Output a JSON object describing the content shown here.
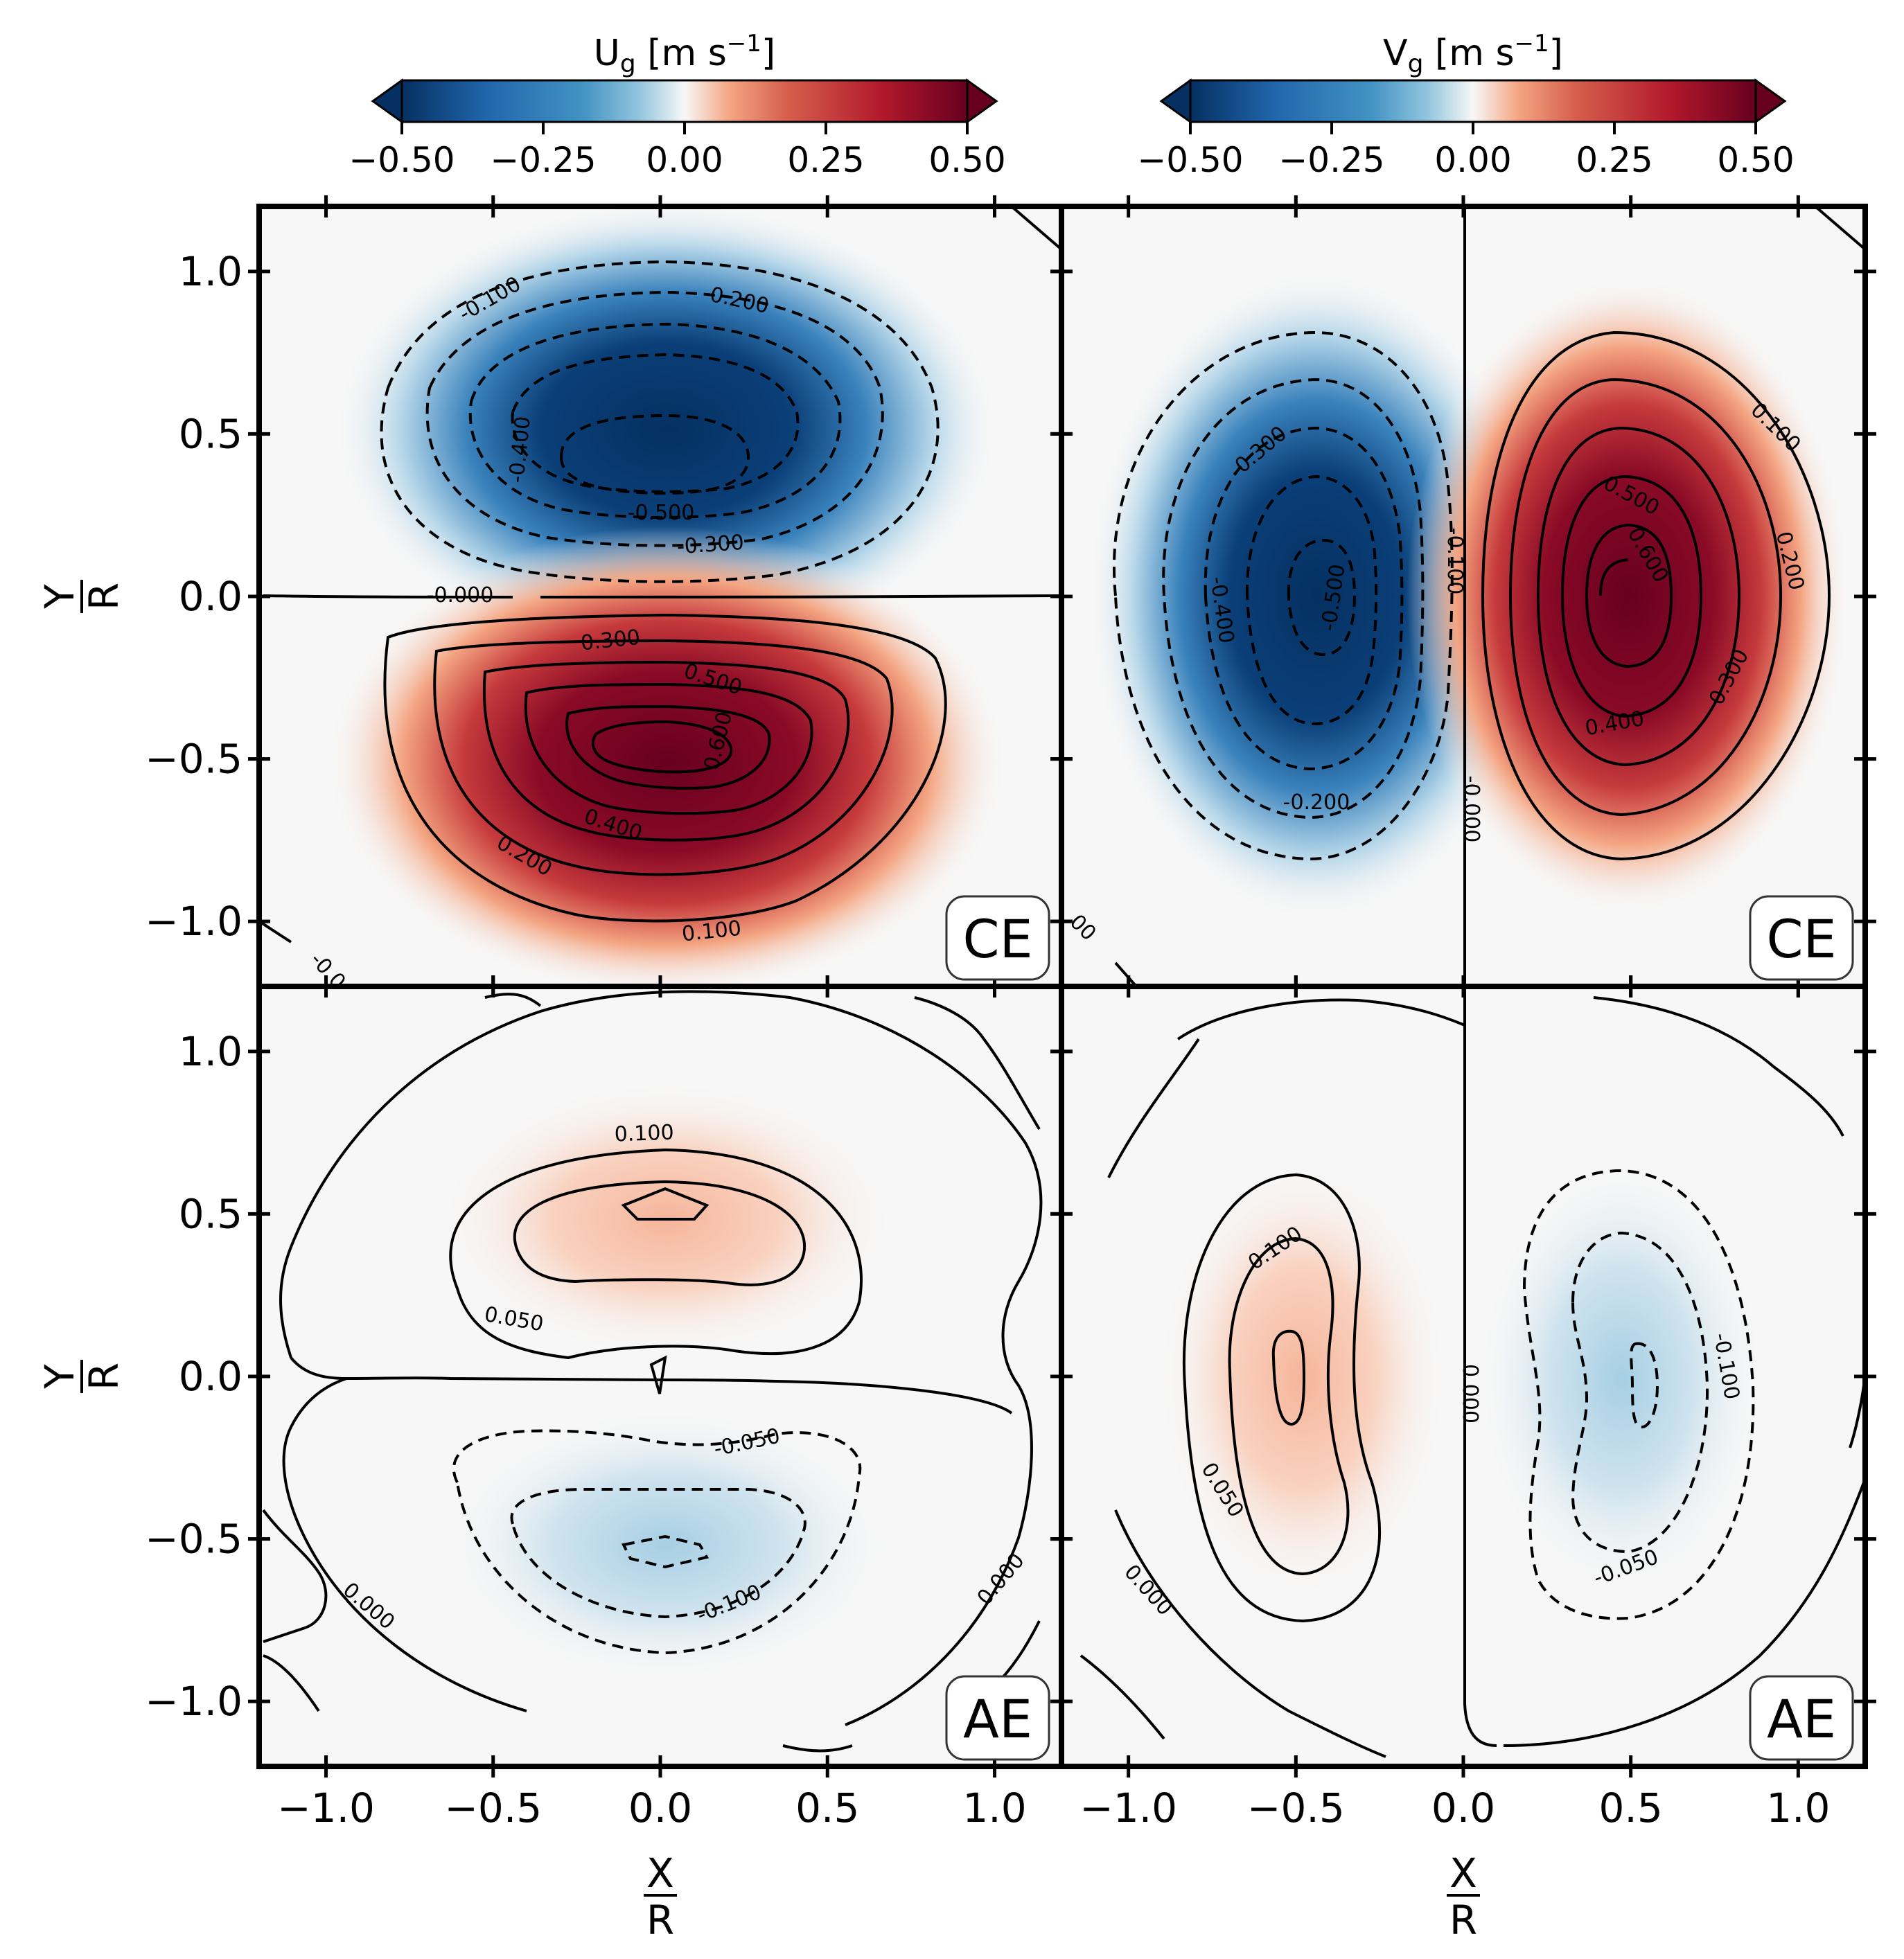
{
  "chart_data": [
    {
      "type": "heatmap",
      "panel": "top-left",
      "variable": "Ug",
      "label": "CE",
      "xlim": [
        -1.2,
        1.2
      ],
      "ylim": [
        -1.2,
        1.2
      ],
      "xticks": [
        -1.0,
        -0.5,
        0.0,
        0.5,
        1.0
      ],
      "yticks": [
        "1.0",
        "0.5",
        "0.0",
        "−0.5",
        "−1.0"
      ],
      "structure": [
        {
          "kind": "negative-lobe",
          "center": [
            0.0,
            0.42
          ],
          "peak": -0.62
        },
        {
          "kind": "positive-lobe",
          "center": [
            0.0,
            -0.42
          ],
          "peak": 0.62
        }
      ],
      "contour_labels": [
        "-0.100",
        "-0.200",
        "-0.400",
        "-0.500",
        "-0.300",
        "-0.000",
        "0.300",
        "0.500",
        "0.600",
        "0.400",
        "0.200",
        "0.100",
        "-0.0"
      ]
    },
    {
      "type": "heatmap",
      "panel": "top-right",
      "variable": "Vg",
      "label": "CE",
      "xlim": [
        -1.2,
        1.2
      ],
      "ylim": [
        -1.2,
        1.2
      ],
      "structure": [
        {
          "kind": "negative-lobe",
          "center": [
            -0.42,
            0.0
          ],
          "peak": -0.62
        },
        {
          "kind": "positive-lobe",
          "center": [
            0.42,
            0.0
          ],
          "peak": 0.62
        }
      ],
      "contour_labels": [
        "-0.300",
        "-0.400",
        "-0.500",
        "-0.100",
        "-0.200",
        "-0.000",
        "0.100",
        "0.500",
        "0.600",
        "0.200",
        "0.300",
        "0.400",
        "00"
      ]
    },
    {
      "type": "heatmap",
      "panel": "bottom-left",
      "variable": "Ug",
      "label": "AE",
      "xlim": [
        -1.2,
        1.2
      ],
      "ylim": [
        -1.2,
        1.2
      ],
      "structure": [
        {
          "kind": "positive-lobe",
          "center": [
            0.0,
            0.5
          ],
          "peak": 0.12
        },
        {
          "kind": "negative-lobe",
          "center": [
            0.0,
            -0.5
          ],
          "peak": -0.12
        }
      ],
      "contour_labels": [
        "0.100",
        "0.050",
        "-0.050",
        "-0.100",
        "0.000",
        "0.000"
      ]
    },
    {
      "type": "heatmap",
      "panel": "bottom-right",
      "variable": "Vg",
      "label": "AE",
      "xlim": [
        -1.2,
        1.2
      ],
      "ylim": [
        -1.2,
        1.2
      ],
      "structure": [
        {
          "kind": "positive-lobe",
          "center": [
            -0.5,
            0.0
          ],
          "peak": 0.12
        },
        {
          "kind": "negative-lobe",
          "center": [
            0.5,
            0.0
          ],
          "peak": -0.12
        }
      ],
      "contour_labels": [
        "0.100",
        "0.050",
        "0.000",
        "-0.100",
        "-0.050",
        "0.000"
      ]
    }
  ],
  "colorbars": [
    {
      "title_main": "U",
      "title_sub": "g",
      "title_unit": " [m s",
      "title_exp": "−1",
      "title_end": "]",
      "ticks": [
        "−0.50",
        "−0.25",
        "0.00",
        "0.25",
        "0.50"
      ],
      "range": [
        -0.5,
        0.5
      ],
      "extend": "both",
      "cmap": "RdBu_r"
    },
    {
      "title_main": "V",
      "title_sub": "g",
      "title_unit": " [m s",
      "title_exp": "−1",
      "title_end": "]",
      "ticks": [
        "−0.50",
        "−0.25",
        "0.00",
        "0.25",
        "0.50"
      ],
      "range": [
        -0.5,
        0.5
      ],
      "extend": "both",
      "cmap": "RdBu_r"
    }
  ],
  "axes": {
    "xlabel_num": "X",
    "xlabel_den": "R",
    "ylabel_num": "Y",
    "ylabel_den": "R",
    "tick_labels": [
      "−1.0",
      "−0.5",
      "0.0",
      "0.5",
      "1.0"
    ],
    "ytick_labels": [
      "1.0",
      "0.5",
      "0.0",
      "−0.5",
      "−1.0"
    ]
  },
  "colors": {
    "deep_red": "#67001f",
    "red": "#b2182b",
    "light_red": "#f4a582",
    "white": "#f7f7f7",
    "light_blue": "#92c5de",
    "blue": "#2166ac",
    "deep_blue": "#053061"
  }
}
